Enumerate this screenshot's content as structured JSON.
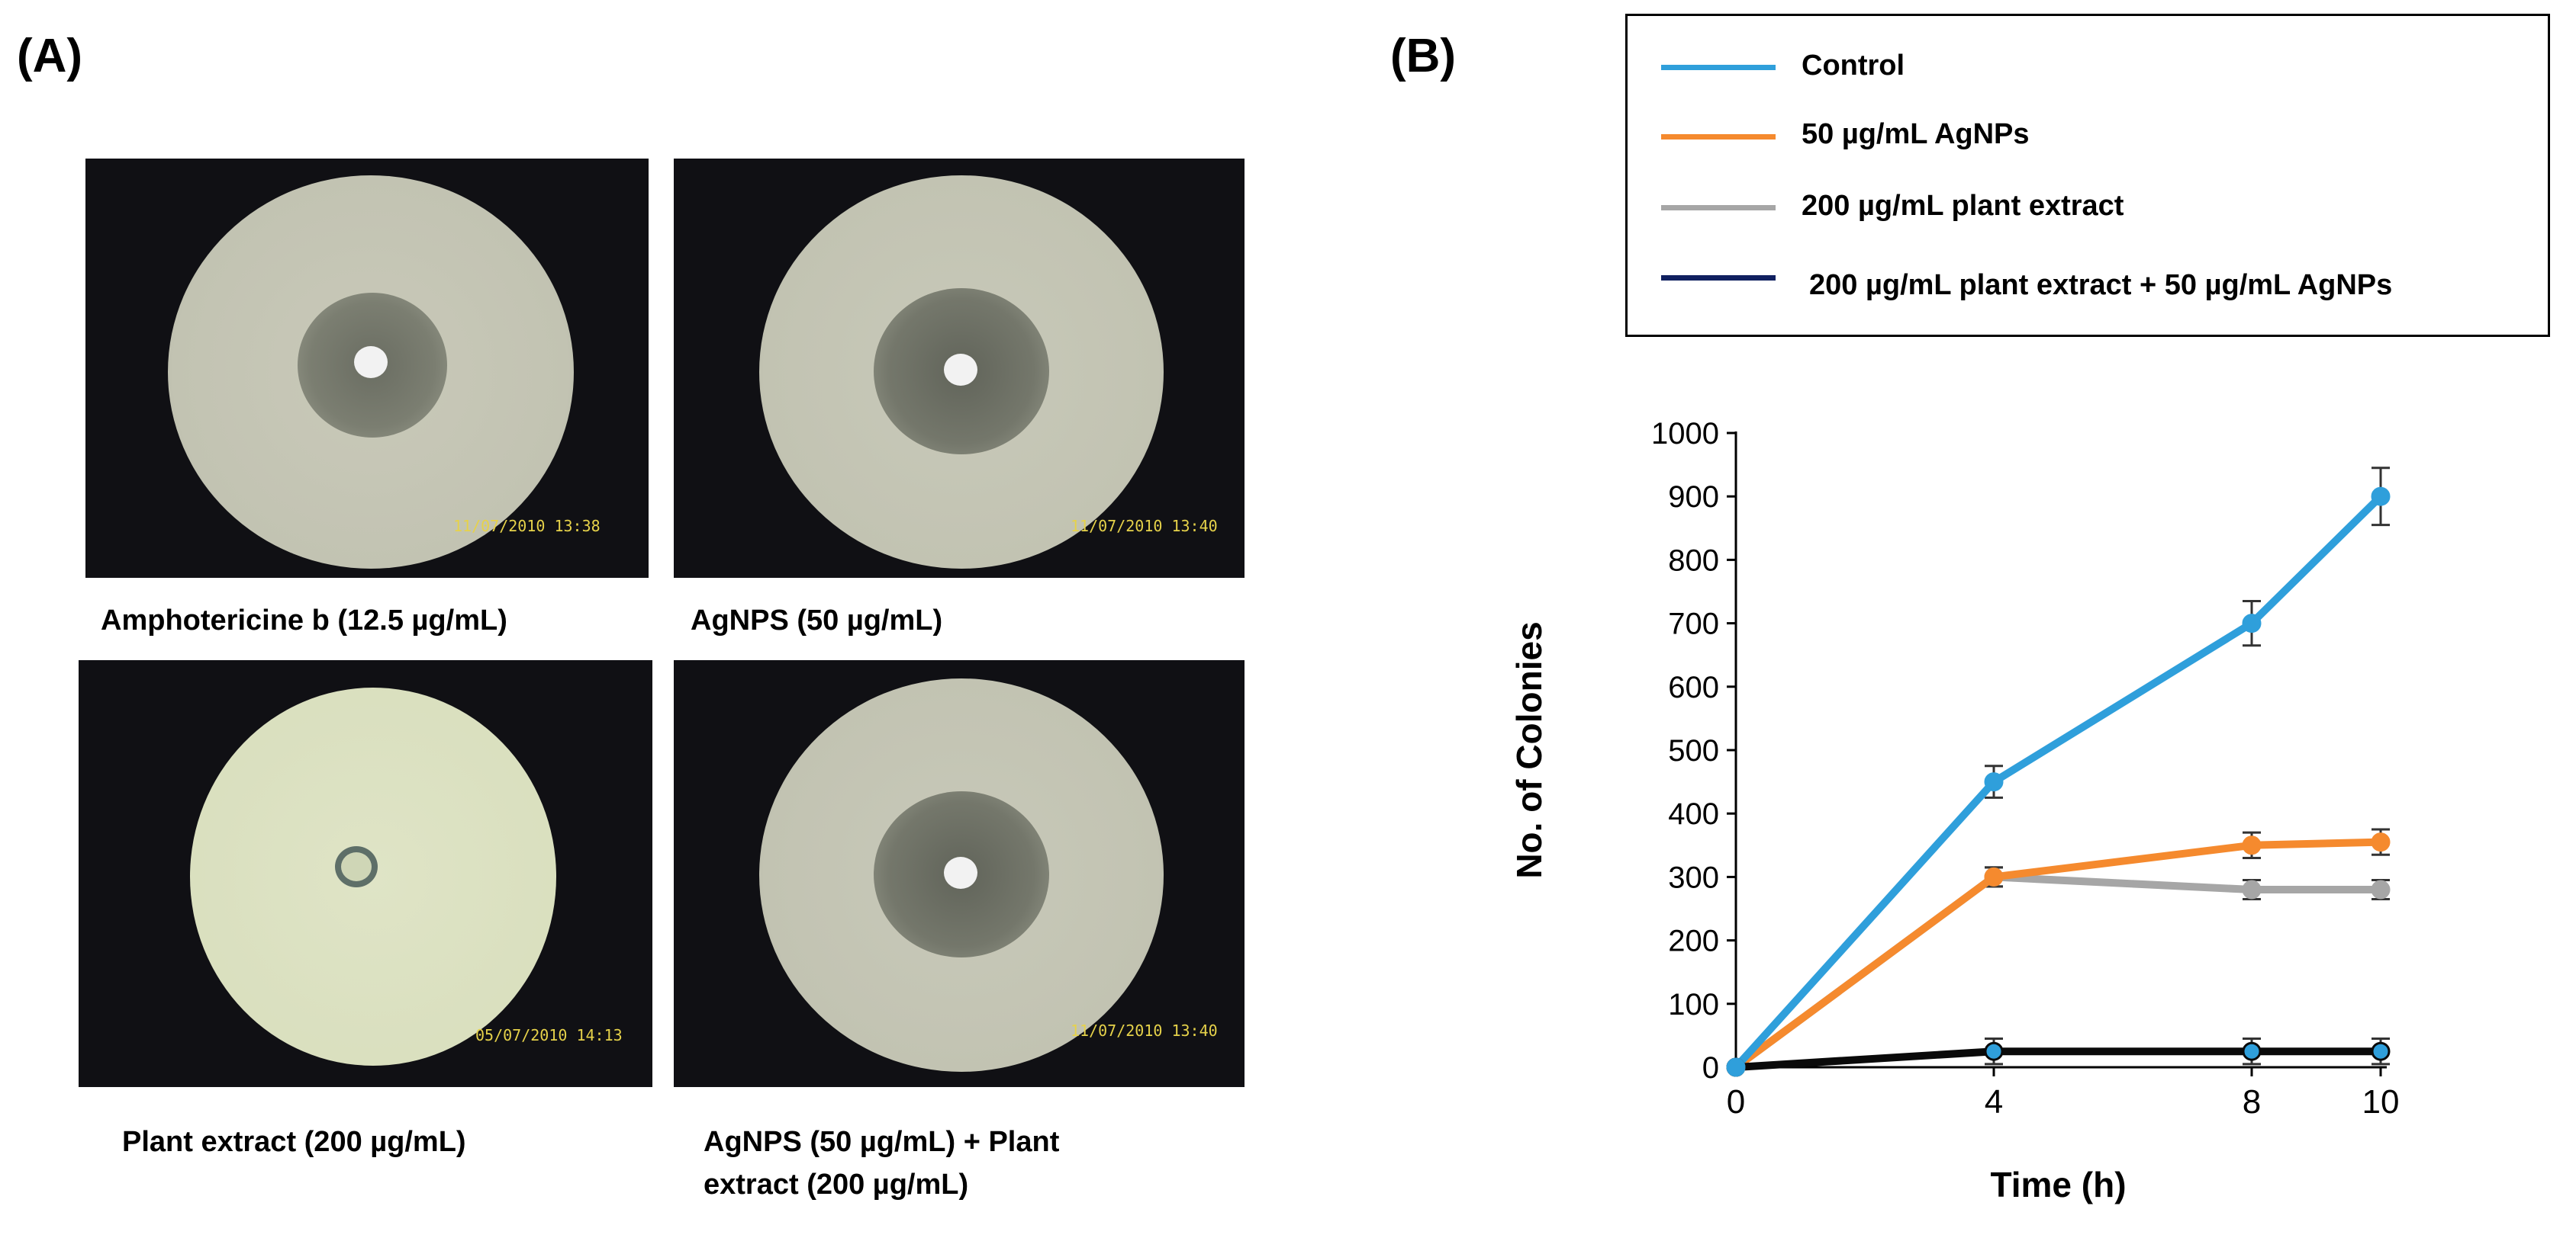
{
  "panels": {
    "a": "(A)",
    "b": "(B)"
  },
  "photos": [
    {
      "caption": "Amphotericine b (12.5 µg/mL)",
      "stamp": "11/07/2010 13:38"
    },
    {
      "caption": "AgNPS (50 µg/mL)",
      "stamp": "11/07/2010 13:40"
    },
    {
      "caption": "Plant extract (200 µg/mL)",
      "stamp": "05/07/2010 14:13"
    },
    {
      "caption_line1": "AgNPS (50 µg/mL) + Plant",
      "caption_line2": "extract (200 µg/mL)",
      "stamp": "11/07/2010 13:40"
    }
  ],
  "colors": {
    "control": "#2f9fdb",
    "agnps": "#f58a2e",
    "plant": "#a6a6a6",
    "combo": "#0a0a0a",
    "combo_legend": "#102060"
  },
  "chart_data": {
    "type": "line",
    "xlabel": "Time (h)",
    "ylabel": "No. of Colonies",
    "x": [
      0,
      4,
      8,
      10
    ],
    "ylim": [
      0,
      1000
    ],
    "yticks": [
      0,
      100,
      200,
      300,
      400,
      500,
      600,
      700,
      800,
      900,
      1000
    ],
    "xticks": [
      0,
      4,
      8,
      10
    ],
    "legend_position": "top-right",
    "series": [
      {
        "name": "Control",
        "values": [
          0,
          450,
          700,
          900
        ],
        "errors": [
          0,
          25,
          35,
          45
        ]
      },
      {
        "name": "50 µg/mL AgNPs",
        "values": [
          0,
          300,
          350,
          355
        ],
        "errors": [
          0,
          15,
          20,
          20
        ]
      },
      {
        "name": "200 µg/mL plant extract",
        "values": [
          0,
          300,
          280,
          280
        ],
        "errors": [
          0,
          15,
          15,
          15
        ]
      },
      {
        "name": "200 µg/mL plant extract + 50 µg/mL AgNPs",
        "values": [
          0,
          25,
          25,
          25
        ],
        "errors": [
          0,
          20,
          20,
          20
        ]
      }
    ]
  }
}
